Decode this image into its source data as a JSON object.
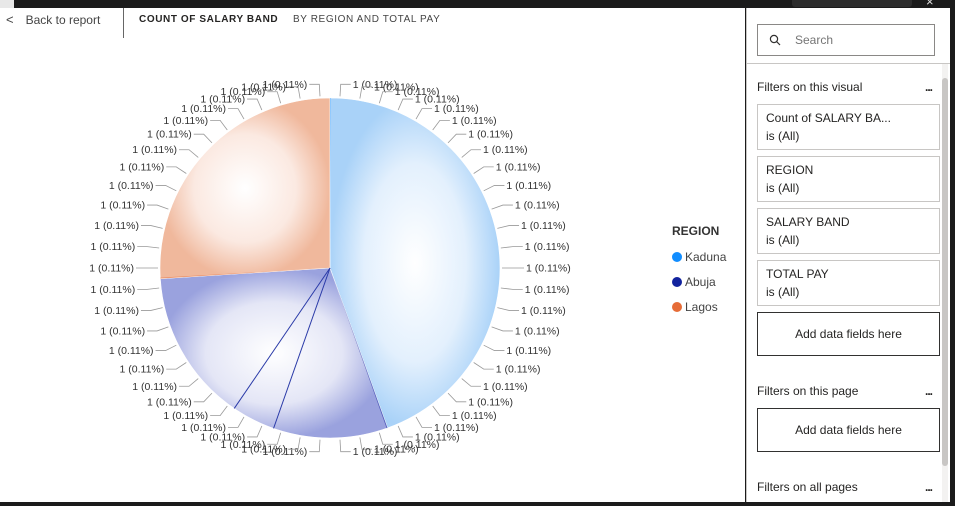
{
  "topbar": {
    "close_glyph": "×"
  },
  "header": {
    "back_label": "Back to report",
    "visual_title": "COUNT OF SALARY BAND",
    "visual_subtitle": "BY REGION AND TOTAL PAY"
  },
  "legend": {
    "title": "REGION",
    "items": [
      {
        "label": "Kaduna",
        "color": "#118dff"
      },
      {
        "label": "Abuja",
        "color": "#12239e"
      },
      {
        "label": "Lagos",
        "color": "#e66c37"
      }
    ]
  },
  "chart_data": {
    "type": "pie",
    "title": "COUNT OF SALARY BAND",
    "subtitle": "BY REGION AND TOTAL PAY",
    "legend_title": "REGION",
    "legend_position": "right",
    "slice_value": 1,
    "slice_percent": "0.11%",
    "slice_label": "1 (0.11%)",
    "series": [
      {
        "name": "Kaduna",
        "color": "#118dff",
        "share_percent": 44.5
      },
      {
        "name": "Abuja",
        "color": "#12239e",
        "share_percent": 29.5
      },
      {
        "name": "Lagos",
        "color": "#e66c37",
        "share_percent": 26.0
      }
    ]
  },
  "filters_pane": {
    "search_placeholder": "Search",
    "visual_section": "Filters on this visual",
    "more_glyph": "...",
    "cards": [
      {
        "title": "Count of SALARY BA...",
        "state": "is (All)"
      },
      {
        "title": "REGION",
        "state": "is (All)"
      },
      {
        "title": "SALARY BAND",
        "state": "is (All)"
      },
      {
        "title": "TOTAL PAY",
        "state": "is (All)"
      }
    ],
    "add_fields_label": "Add data fields here",
    "page_section": "Filters on this page",
    "page_add_fields_label": "Add data fields here",
    "all_pages_section": "Filters on all pages"
  }
}
